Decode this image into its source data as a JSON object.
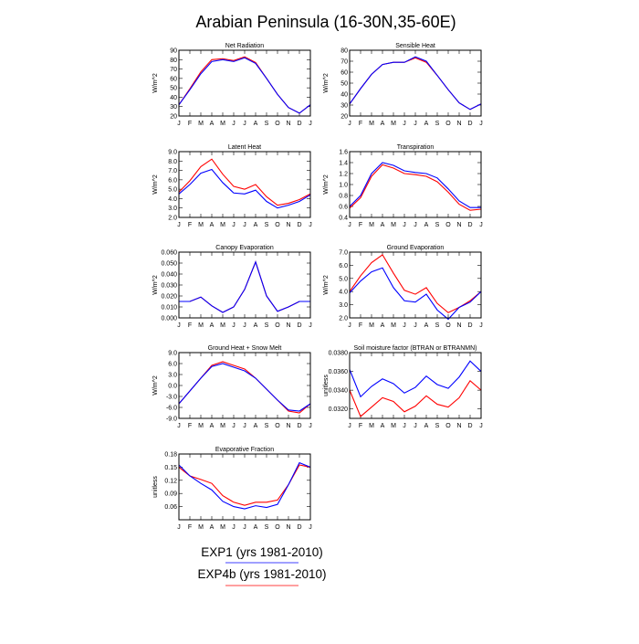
{
  "title": "Arabian Peninsula (16-30N,35-60E)",
  "months": [
    "J",
    "F",
    "M",
    "A",
    "M",
    "J",
    "J",
    "A",
    "S",
    "O",
    "N",
    "D",
    "J"
  ],
  "colors": {
    "exp1": "#0000ff",
    "exp4b": "#ff0000"
  },
  "legend": [
    {
      "label": "EXP1 (yrs 1981-2010)",
      "color": "#0000ff"
    },
    {
      "label": "EXP4b (yrs 1981-2010)",
      "color": "#ff0000"
    }
  ],
  "chart_data": [
    {
      "type": "line",
      "title": "Net Radiation",
      "ylabel": "W/m^2",
      "ylim": [
        20,
        90
      ],
      "yticks": [
        "20",
        "30",
        "40",
        "50",
        "60",
        "70",
        "80",
        "90"
      ],
      "categories": [
        "J",
        "F",
        "M",
        "A",
        "M",
        "J",
        "J",
        "A",
        "S",
        "O",
        "N",
        "D",
        "J"
      ],
      "series": [
        {
          "name": "EXP1 (yrs 1981-2010)",
          "color": "#0000ff",
          "values": [
            32,
            48,
            65,
            78,
            80,
            78,
            82,
            76,
            60,
            43,
            29,
            23,
            32
          ]
        },
        {
          "name": "EXP4b (yrs 1981-2010)",
          "color": "#ff0000",
          "values": [
            32,
            49,
            67,
            80,
            81,
            79,
            83,
            77,
            60,
            43,
            29,
            23,
            32
          ]
        }
      ]
    },
    {
      "type": "line",
      "title": "Sensible Heat",
      "ylabel": "W/m^2",
      "ylim": [
        20,
        80
      ],
      "yticks": [
        "20",
        "30",
        "40",
        "50",
        "60",
        "70",
        "80"
      ],
      "categories": [
        "J",
        "F",
        "M",
        "A",
        "M",
        "J",
        "J",
        "A",
        "S",
        "O",
        "N",
        "D",
        "J"
      ],
      "series": [
        {
          "name": "EXP1 (yrs 1981-2010)",
          "color": "#0000ff",
          "values": [
            31,
            45,
            58,
            67,
            69,
            69,
            74,
            70,
            57,
            44,
            32,
            26,
            31
          ]
        },
        {
          "name": "EXP4b (yrs 1981-2010)",
          "color": "#ff0000",
          "values": [
            31,
            45,
            58,
            67,
            69,
            69,
            73,
            69,
            57,
            44,
            32,
            26,
            31
          ]
        }
      ]
    },
    {
      "type": "line",
      "title": "Latent Heat",
      "ylabel": "W/m^2",
      "ylim": [
        2.0,
        9.0
      ],
      "yticks": [
        "2.0",
        "3.0",
        "4.0",
        "5.0",
        "6.0",
        "7.0",
        "8.0",
        "9.0"
      ],
      "categories": [
        "J",
        "F",
        "M",
        "A",
        "M",
        "J",
        "J",
        "A",
        "S",
        "O",
        "N",
        "D",
        "J"
      ],
      "series": [
        {
          "name": "EXP1 (yrs 1981-2010)",
          "color": "#0000ff",
          "values": [
            4.5,
            5.5,
            6.7,
            7.1,
            5.7,
            4.6,
            4.5,
            4.9,
            3.7,
            3.0,
            3.3,
            3.7,
            4.4
          ]
        },
        {
          "name": "EXP4b (yrs 1981-2010)",
          "color": "#ff0000",
          "values": [
            4.7,
            5.9,
            7.4,
            8.2,
            6.6,
            5.3,
            5.0,
            5.5,
            4.2,
            3.3,
            3.5,
            3.9,
            4.5
          ]
        }
      ]
    },
    {
      "type": "line",
      "title": "Transpiration",
      "ylabel": "W/m^2",
      "ylim": [
        0.4,
        1.6
      ],
      "yticks": [
        "0.4",
        "0.6",
        "0.8",
        "1.0",
        "1.2",
        "1.4",
        "1.6"
      ],
      "categories": [
        "J",
        "F",
        "M",
        "A",
        "M",
        "J",
        "J",
        "A",
        "S",
        "O",
        "N",
        "D",
        "J"
      ],
      "series": [
        {
          "name": "EXP1 (yrs 1981-2010)",
          "color": "#0000ff",
          "values": [
            0.6,
            0.8,
            1.2,
            1.4,
            1.35,
            1.25,
            1.22,
            1.2,
            1.12,
            0.92,
            0.7,
            0.58,
            0.58
          ]
        },
        {
          "name": "EXP4b (yrs 1981-2010)",
          "color": "#ff0000",
          "values": [
            0.57,
            0.76,
            1.15,
            1.36,
            1.3,
            1.2,
            1.18,
            1.15,
            1.05,
            0.86,
            0.64,
            0.53,
            0.55
          ]
        }
      ]
    },
    {
      "type": "line",
      "title": "Canopy Evaporation",
      "ylabel": "W/m^2",
      "ylim": [
        0.0,
        0.06
      ],
      "yticks": [
        "0.000",
        "0.010",
        "0.020",
        "0.030",
        "0.040",
        "0.050",
        "0.060"
      ],
      "categories": [
        "J",
        "F",
        "M",
        "A",
        "M",
        "J",
        "J",
        "A",
        "S",
        "O",
        "N",
        "D",
        "J"
      ],
      "series": [
        {
          "name": "EXP1 (yrs 1981-2010)",
          "color": "#0000ff",
          "values": [
            0.015,
            0.015,
            0.019,
            0.011,
            0.005,
            0.01,
            0.026,
            0.051,
            0.02,
            0.006,
            0.01,
            0.015,
            0.015
          ]
        },
        {
          "name": "EXP4b (yrs 1981-2010)",
          "color": "#ff0000",
          "values": [
            0.015,
            0.015,
            0.019,
            0.011,
            0.005,
            0.01,
            0.026,
            0.051,
            0.02,
            0.006,
            0.01,
            0.015,
            0.015
          ]
        }
      ]
    },
    {
      "type": "line",
      "title": "Ground Evaporation",
      "ylabel": "W/m^2",
      "ylim": [
        2.0,
        7.0
      ],
      "yticks": [
        "2.0",
        "3.0",
        "4.0",
        "5.0",
        "6.0",
        "7.0"
      ],
      "categories": [
        "J",
        "F",
        "M",
        "A",
        "M",
        "J",
        "J",
        "A",
        "S",
        "O",
        "N",
        "D",
        "J"
      ],
      "series": [
        {
          "name": "EXP1 (yrs 1981-2010)",
          "color": "#0000ff",
          "values": [
            3.9,
            4.8,
            5.5,
            5.8,
            4.3,
            3.3,
            3.2,
            3.8,
            2.6,
            1.9,
            2.8,
            3.2,
            4.0
          ]
        },
        {
          "name": "EXP4b (yrs 1981-2010)",
          "color": "#ff0000",
          "values": [
            4.0,
            5.2,
            6.2,
            6.8,
            5.4,
            4.1,
            3.8,
            4.3,
            3.1,
            2.4,
            2.8,
            3.3,
            4.0
          ]
        }
      ]
    },
    {
      "type": "line",
      "title": "Ground Heat + Snow Melt",
      "ylabel": "W/m^2",
      "ylim": [
        -9.0,
        9.0
      ],
      "yticks": [
        "-9.0",
        "-6.0",
        "-3.0",
        "0.0",
        "3.0",
        "6.0",
        "9.0"
      ],
      "categories": [
        "J",
        "F",
        "M",
        "A",
        "M",
        "J",
        "J",
        "A",
        "S",
        "O",
        "N",
        "D",
        "J"
      ],
      "series": [
        {
          "name": "EXP1 (yrs 1981-2010)",
          "color": "#0000ff",
          "values": [
            -5.0,
            -1.5,
            2.0,
            5.2,
            6.0,
            5.0,
            4.0,
            2.0,
            -1.0,
            -4.0,
            -6.7,
            -7.0,
            -5.0
          ]
        },
        {
          "name": "EXP4b (yrs 1981-2010)",
          "color": "#ff0000",
          "values": [
            -5.0,
            -1.5,
            2.0,
            5.5,
            6.5,
            5.5,
            4.5,
            2.0,
            -1.0,
            -4.0,
            -7.0,
            -7.5,
            -5.0
          ]
        }
      ]
    },
    {
      "type": "line",
      "title": "Soil moisture factor (BTRAN or BTRANMN)",
      "ylabel": "unitless",
      "ylim": [
        0.031,
        0.038
      ],
      "yticks": [
        "0.0320",
        "0.0340",
        "0.0360",
        "0.0380"
      ],
      "yticks_at": [
        0.032,
        0.034,
        0.036,
        0.038
      ],
      "categories": [
        "J",
        "F",
        "M",
        "A",
        "M",
        "J",
        "J",
        "A",
        "S",
        "O",
        "N",
        "D",
        "J"
      ],
      "series": [
        {
          "name": "EXP1 (yrs 1981-2010)",
          "color": "#0000ff",
          "values": [
            0.0362,
            0.0333,
            0.0344,
            0.0352,
            0.0347,
            0.0337,
            0.0343,
            0.0355,
            0.0346,
            0.0342,
            0.0354,
            0.0371,
            0.036
          ]
        },
        {
          "name": "EXP4b (yrs 1981-2010)",
          "color": "#ff0000",
          "values": [
            0.034,
            0.0312,
            0.0322,
            0.0332,
            0.0328,
            0.0317,
            0.0323,
            0.0334,
            0.0325,
            0.0322,
            0.0332,
            0.035,
            0.034
          ]
        }
      ]
    },
    {
      "type": "line",
      "title": "Evaporative Fraction",
      "ylabel": "unitless",
      "ylim": [
        0.03,
        0.18
      ],
      "yticks": [
        "0.06",
        "0.09",
        "0.12",
        "0.15",
        "0.18"
      ],
      "yticks_at": [
        0.06,
        0.09,
        0.12,
        0.15,
        0.18
      ],
      "categories": [
        "J",
        "F",
        "M",
        "A",
        "M",
        "J",
        "J",
        "A",
        "S",
        "O",
        "N",
        "D",
        "J"
      ],
      "series": [
        {
          "name": "EXP1 (yrs 1981-2010)",
          "color": "#0000ff",
          "values": [
            0.155,
            0.13,
            0.113,
            0.098,
            0.072,
            0.06,
            0.055,
            0.062,
            0.058,
            0.065,
            0.11,
            0.16,
            0.15
          ]
        },
        {
          "name": "EXP4b (yrs 1981-2010)",
          "color": "#ff0000",
          "values": [
            0.15,
            0.13,
            0.122,
            0.113,
            0.085,
            0.07,
            0.063,
            0.07,
            0.07,
            0.075,
            0.11,
            0.155,
            0.15
          ]
        }
      ]
    }
  ]
}
